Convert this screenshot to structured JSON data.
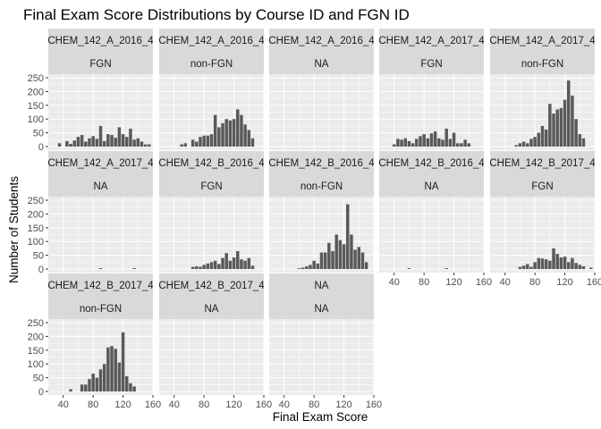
{
  "chart_data": {
    "type": "bar",
    "title": "Final Exam Score Distributions by Course ID and FGN ID",
    "xlabel": "Final Exam Score",
    "ylabel": "Number of Students",
    "xlim": [
      20,
      160
    ],
    "ylim": [
      0,
      250
    ],
    "x_ticks": [
      40,
      80,
      120,
      160
    ],
    "y_ticks": [
      0,
      50,
      100,
      150,
      200,
      250
    ],
    "bin_centers": [
      30,
      35,
      40,
      45,
      50,
      55,
      60,
      65,
      70,
      75,
      80,
      85,
      90,
      95,
      100,
      105,
      110,
      115,
      120,
      125,
      130,
      135,
      140,
      145,
      150,
      155
    ],
    "grid": true,
    "panels": [
      {
        "course": "CHEM_142_A_2016_4",
        "fgn": "FGN",
        "values": [
          0,
          12,
          0,
          20,
          10,
          22,
          35,
          42,
          18,
          30,
          38,
          28,
          75,
          20,
          45,
          42,
          32,
          70,
          45,
          35,
          65,
          25,
          30,
          18,
          8,
          8
        ]
      },
      {
        "course": "CHEM_142_A_2016_4",
        "fgn": "non-FGN",
        "values": [
          0,
          0,
          0,
          0,
          8,
          12,
          0,
          25,
          18,
          35,
          40,
          40,
          45,
          115,
          70,
          85,
          100,
          95,
          100,
          135,
          115,
          80,
          60,
          30,
          0,
          0
        ]
      },
      {
        "course": "CHEM_142_A_2016_4",
        "fgn": "NA",
        "values": [
          0,
          0,
          0,
          0,
          0,
          0,
          0,
          0,
          0,
          0,
          0,
          0,
          0,
          0,
          0,
          0,
          0,
          0,
          0,
          0,
          0,
          0,
          0,
          0,
          0,
          0
        ]
      },
      {
        "course": "CHEM_142_A_2017_4",
        "fgn": "FGN",
        "values": [
          0,
          0,
          8,
          28,
          25,
          30,
          20,
          12,
          28,
          38,
          45,
          30,
          48,
          55,
          30,
          25,
          65,
          28,
          50,
          12,
          12,
          25,
          12,
          0,
          0,
          0
        ]
      },
      {
        "course": "CHEM_142_A_2017_4",
        "fgn": "non-FGN",
        "values": [
          0,
          0,
          0,
          0,
          0,
          5,
          12,
          18,
          12,
          28,
          35,
          50,
          75,
          62,
          155,
          120,
          135,
          140,
          170,
          240,
          185,
          100,
          45,
          30,
          0,
          0
        ]
      },
      {
        "course": "CHEM_142_A_2017_4",
        "fgn": "NA",
        "values": [
          0,
          0,
          0,
          0,
          0,
          0,
          0,
          0,
          0,
          0,
          0,
          0,
          3,
          0,
          0,
          0,
          0,
          0,
          0,
          0,
          0,
          3,
          0,
          0,
          0,
          0
        ]
      },
      {
        "course": "CHEM_142_B_2016_4",
        "fgn": "FGN",
        "values": [
          0,
          0,
          0,
          0,
          0,
          0,
          0,
          8,
          10,
          8,
          15,
          20,
          25,
          30,
          18,
          40,
          58,
          30,
          42,
          65,
          35,
          30,
          40,
          12,
          0,
          0
        ]
      },
      {
        "course": "CHEM_142_B_2016_4",
        "fgn": "non-FGN",
        "values": [
          0,
          0,
          0,
          0,
          0,
          0,
          3,
          5,
          10,
          15,
          30,
          20,
          60,
          60,
          95,
          65,
          125,
          105,
          90,
          235,
          125,
          70,
          80,
          60,
          25,
          0
        ]
      },
      {
        "course": "CHEM_142_B_2016_4",
        "fgn": "NA",
        "values": [
          0,
          0,
          0,
          0,
          0,
          0,
          3,
          0,
          0,
          0,
          0,
          0,
          0,
          0,
          0,
          0,
          3,
          0,
          0,
          0,
          0,
          0,
          0,
          0,
          0,
          0
        ]
      },
      {
        "course": "CHEM_142_B_2017_4",
        "fgn": "FGN",
        "values": [
          0,
          0,
          0,
          0,
          0,
          0,
          8,
          12,
          18,
          8,
          25,
          40,
          38,
          35,
          30,
          75,
          55,
          42,
          45,
          25,
          40,
          22,
          15,
          10,
          0,
          5
        ]
      },
      {
        "course": "CHEM_142_B_2017_4",
        "fgn": "non-FGN",
        "values": [
          0,
          0,
          0,
          0,
          8,
          0,
          0,
          25,
          25,
          45,
          65,
          50,
          80,
          100,
          160,
          165,
          155,
          105,
          215,
          55,
          30,
          18,
          0,
          0,
          0,
          0
        ]
      },
      {
        "course": "CHEM_142_B_2017_4",
        "fgn": "NA",
        "values": [
          0,
          0,
          0,
          0,
          0,
          0,
          0,
          0,
          0,
          0,
          0,
          0,
          0,
          0,
          0,
          0,
          0,
          0,
          0,
          0,
          0,
          0,
          0,
          0,
          0,
          0
        ]
      },
      {
        "course": "NA",
        "fgn": "NA",
        "values": [
          0,
          0,
          0,
          0,
          0,
          0,
          0,
          0,
          0,
          0,
          0,
          0,
          0,
          0,
          0,
          0,
          0,
          0,
          0,
          0,
          0,
          0,
          0,
          0,
          0,
          0
        ]
      }
    ]
  },
  "colors": {
    "panel_bg": "#EBEBEB",
    "grid": "#FFFFFF",
    "strip_bg": "#D9D9D9",
    "bar": "#595959",
    "strip_text": "#1A1A1A",
    "tick_text": "#4D4D4D"
  }
}
